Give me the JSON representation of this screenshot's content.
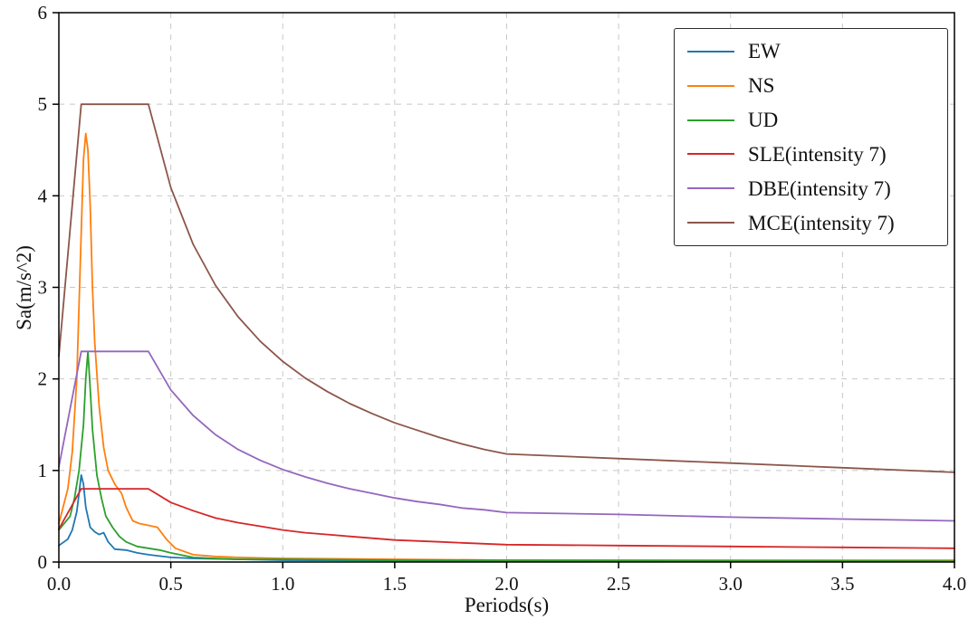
{
  "figure": {
    "background": "#ffffff",
    "text_color": "#111111",
    "grid_color": "#c8c8c8",
    "spine_color": "#000000"
  },
  "chart_data": {
    "type": "line",
    "title": "",
    "xlabel": "Periods(s)",
    "ylabel": "Sa(m/s^2)",
    "xlim": [
      0,
      4
    ],
    "ylim": [
      0,
      6
    ],
    "grid": true,
    "grid_style": "dashed",
    "legend_position": "upper right",
    "xticks": [
      0,
      0.5,
      1.0,
      1.5,
      2.0,
      2.5,
      3.0,
      3.5,
      4.0
    ],
    "xtick_labels": [
      "0.0",
      "0.5",
      "1.0",
      "1.5",
      "2.0",
      "2.5",
      "3.0",
      "3.5",
      "4.0"
    ],
    "yticks": [
      0,
      1,
      2,
      3,
      4,
      5,
      6
    ],
    "ytick_labels": [
      "0",
      "1",
      "2",
      "3",
      "4",
      "5",
      "6"
    ],
    "series": [
      {
        "name": "EW",
        "color": "#1f77b4",
        "points": [
          [
            0,
            0.18
          ],
          [
            0.04,
            0.25
          ],
          [
            0.06,
            0.35
          ],
          [
            0.08,
            0.55
          ],
          [
            0.09,
            0.75
          ],
          [
            0.1,
            0.95
          ],
          [
            0.11,
            0.85
          ],
          [
            0.12,
            0.6
          ],
          [
            0.14,
            0.38
          ],
          [
            0.16,
            0.33
          ],
          [
            0.18,
            0.3
          ],
          [
            0.2,
            0.32
          ],
          [
            0.22,
            0.22
          ],
          [
            0.25,
            0.14
          ],
          [
            0.3,
            0.13
          ],
          [
            0.35,
            0.1
          ],
          [
            0.4,
            0.08
          ],
          [
            0.5,
            0.05
          ],
          [
            0.6,
            0.04
          ],
          [
            0.8,
            0.03
          ],
          [
            1.0,
            0.02
          ],
          [
            1.5,
            0.015
          ],
          [
            2.0,
            0.01
          ],
          [
            3.0,
            0.01
          ],
          [
            4.0,
            0.01
          ]
        ]
      },
      {
        "name": "NS",
        "color": "#ff7f0e",
        "points": [
          [
            0,
            0.42
          ],
          [
            0.04,
            0.8
          ],
          [
            0.06,
            1.2
          ],
          [
            0.08,
            2.0
          ],
          [
            0.1,
            3.6
          ],
          [
            0.11,
            4.4
          ],
          [
            0.12,
            4.68
          ],
          [
            0.13,
            4.5
          ],
          [
            0.14,
            3.9
          ],
          [
            0.15,
            3.0
          ],
          [
            0.16,
            2.4
          ],
          [
            0.18,
            1.7
          ],
          [
            0.2,
            1.25
          ],
          [
            0.22,
            1.0
          ],
          [
            0.25,
            0.85
          ],
          [
            0.28,
            0.75
          ],
          [
            0.3,
            0.6
          ],
          [
            0.33,
            0.45
          ],
          [
            0.36,
            0.42
          ],
          [
            0.4,
            0.4
          ],
          [
            0.44,
            0.38
          ],
          [
            0.48,
            0.25
          ],
          [
            0.52,
            0.15
          ],
          [
            0.6,
            0.08
          ],
          [
            0.7,
            0.06
          ],
          [
            0.8,
            0.05
          ],
          [
            1.0,
            0.04
          ],
          [
            1.5,
            0.03
          ],
          [
            2.0,
            0.02
          ],
          [
            3.0,
            0.02
          ],
          [
            4.0,
            0.02
          ]
        ]
      },
      {
        "name": "UD",
        "color": "#2ca02c",
        "points": [
          [
            0,
            0.35
          ],
          [
            0.05,
            0.5
          ],
          [
            0.07,
            0.7
          ],
          [
            0.09,
            1.0
          ],
          [
            0.11,
            1.5
          ],
          [
            0.12,
            2.0
          ],
          [
            0.13,
            2.3
          ],
          [
            0.14,
            1.9
          ],
          [
            0.15,
            1.45
          ],
          [
            0.17,
            0.95
          ],
          [
            0.19,
            0.7
          ],
          [
            0.21,
            0.5
          ],
          [
            0.24,
            0.38
          ],
          [
            0.27,
            0.28
          ],
          [
            0.3,
            0.22
          ],
          [
            0.35,
            0.17
          ],
          [
            0.4,
            0.15
          ],
          [
            0.45,
            0.13
          ],
          [
            0.5,
            0.1
          ],
          [
            0.6,
            0.05
          ],
          [
            0.7,
            0.04
          ],
          [
            0.8,
            0.03
          ],
          [
            1.0,
            0.03
          ],
          [
            1.5,
            0.02
          ],
          [
            2.0,
            0.02
          ],
          [
            3.0,
            0.015
          ],
          [
            4.0,
            0.01
          ]
        ]
      },
      {
        "name": "SLE(intensity 7)",
        "color": "#d62728",
        "points": [
          [
            0,
            0.36
          ],
          [
            0.1,
            0.8
          ],
          [
            0.4,
            0.8
          ],
          [
            0.5,
            0.65
          ],
          [
            0.6,
            0.56
          ],
          [
            0.7,
            0.48
          ],
          [
            0.8,
            0.43
          ],
          [
            0.9,
            0.39
          ],
          [
            1.0,
            0.35
          ],
          [
            1.1,
            0.32
          ],
          [
            1.2,
            0.3
          ],
          [
            1.3,
            0.28
          ],
          [
            1.4,
            0.26
          ],
          [
            1.5,
            0.24
          ],
          [
            1.6,
            0.23
          ],
          [
            1.7,
            0.22
          ],
          [
            1.8,
            0.21
          ],
          [
            1.9,
            0.2
          ],
          [
            2.0,
            0.19
          ],
          [
            2.5,
            0.18
          ],
          [
            3.0,
            0.17
          ],
          [
            3.5,
            0.16
          ],
          [
            4.0,
            0.15
          ]
        ]
      },
      {
        "name": "DBE(intensity 7)",
        "color": "#9467bd",
        "points": [
          [
            0,
            1.04
          ],
          [
            0.1,
            2.3
          ],
          [
            0.4,
            2.3
          ],
          [
            0.5,
            1.88
          ],
          [
            0.6,
            1.6
          ],
          [
            0.7,
            1.39
          ],
          [
            0.8,
            1.23
          ],
          [
            0.9,
            1.11
          ],
          [
            1.0,
            1.01
          ],
          [
            1.1,
            0.93
          ],
          [
            1.2,
            0.86
          ],
          [
            1.3,
            0.8
          ],
          [
            1.4,
            0.75
          ],
          [
            1.5,
            0.7
          ],
          [
            1.6,
            0.66
          ],
          [
            1.7,
            0.63
          ],
          [
            1.8,
            0.59
          ],
          [
            1.9,
            0.57
          ],
          [
            2.0,
            0.54
          ],
          [
            2.5,
            0.52
          ],
          [
            3.0,
            0.49
          ],
          [
            3.5,
            0.47
          ],
          [
            4.0,
            0.45
          ]
        ]
      },
      {
        "name": "MCE(intensity 7)",
        "color": "#8c564b",
        "points": [
          [
            0,
            2.25
          ],
          [
            0.1,
            5.0
          ],
          [
            0.4,
            5.0
          ],
          [
            0.5,
            4.09
          ],
          [
            0.6,
            3.47
          ],
          [
            0.7,
            3.02
          ],
          [
            0.8,
            2.68
          ],
          [
            0.9,
            2.41
          ],
          [
            1.0,
            2.19
          ],
          [
            1.1,
            2.01
          ],
          [
            1.2,
            1.86
          ],
          [
            1.3,
            1.73
          ],
          [
            1.4,
            1.62
          ],
          [
            1.5,
            1.52
          ],
          [
            1.6,
            1.44
          ],
          [
            1.7,
            1.36
          ],
          [
            1.8,
            1.29
          ],
          [
            1.9,
            1.23
          ],
          [
            2.0,
            1.18
          ],
          [
            2.5,
            1.13
          ],
          [
            3.0,
            1.08
          ],
          [
            3.5,
            1.03
          ],
          [
            4.0,
            0.98
          ]
        ]
      }
    ]
  }
}
